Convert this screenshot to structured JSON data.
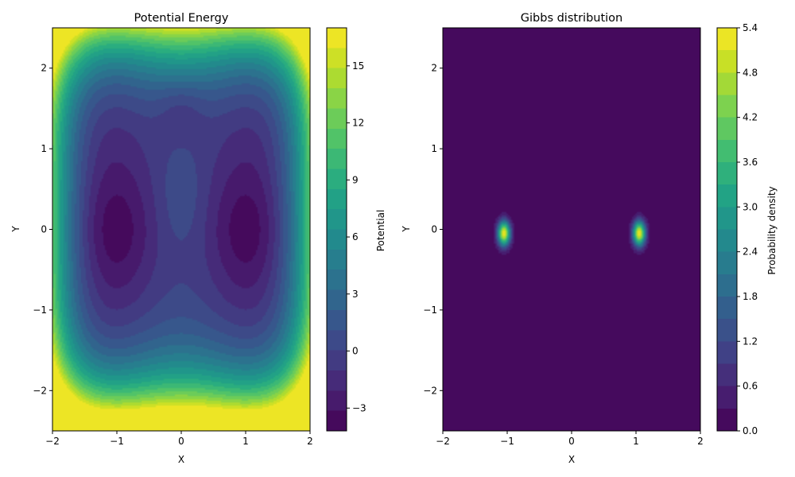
{
  "chart_data": [
    {
      "type": "heatmap",
      "style": "filled-contour",
      "colormap": "viridis",
      "title": "Potential Energy",
      "xlabel": "X",
      "ylabel": "Y",
      "xlim": [
        -2,
        2
      ],
      "ylim": [
        -2.5,
        2.5
      ],
      "xticks": [
        -2,
        -1,
        0,
        1,
        2
      ],
      "yticks": [
        -2,
        -1,
        0,
        1,
        2
      ],
      "colorbar": {
        "label": "Potential",
        "range": [
          -4.2,
          17.0
        ],
        "ticks": [
          -3,
          0,
          3,
          6,
          9,
          12,
          15
        ],
        "tick_labels": [
          "−3",
          "0",
          "3",
          "6",
          "9",
          "12",
          "15"
        ],
        "levels": 20
      },
      "features": {
        "minima": [
          {
            "x": -1.0,
            "y": 0.0,
            "value": -3.8
          },
          {
            "x": 1.0,
            "y": 0.0,
            "value": -3.8
          }
        ],
        "secondary_minimum": {
          "x": 0.0,
          "y": 1.5,
          "value": -2.7
        },
        "local_maximum": {
          "x": 0.0,
          "y": 0.4,
          "value": -0.8
        }
      }
    },
    {
      "type": "heatmap",
      "style": "filled-contour",
      "colormap": "viridis",
      "title": "Gibbs distribution",
      "xlabel": "X",
      "ylabel": "Y",
      "xlim": [
        -2,
        2
      ],
      "ylim": [
        -2.5,
        2.5
      ],
      "xticks": [
        -2,
        -1,
        0,
        1,
        2
      ],
      "yticks": [
        -2,
        -1,
        0,
        1,
        2
      ],
      "colorbar": {
        "label": "Probability density",
        "range": [
          0.0,
          5.4
        ],
        "ticks": [
          0.0,
          0.6,
          1.2,
          1.8,
          2.4,
          3.0,
          3.6,
          4.2,
          4.8,
          5.4
        ],
        "tick_labels": [
          "0.0",
          "0.6",
          "1.2",
          "1.8",
          "2.4",
          "3.0",
          "3.6",
          "4.2",
          "4.8",
          "5.4"
        ],
        "levels": 18
      },
      "features": {
        "peaks": [
          {
            "x": -1.05,
            "y": -0.05,
            "value": 5.3
          },
          {
            "x": 1.05,
            "y": -0.05,
            "value": 5.3
          }
        ]
      }
    }
  ]
}
